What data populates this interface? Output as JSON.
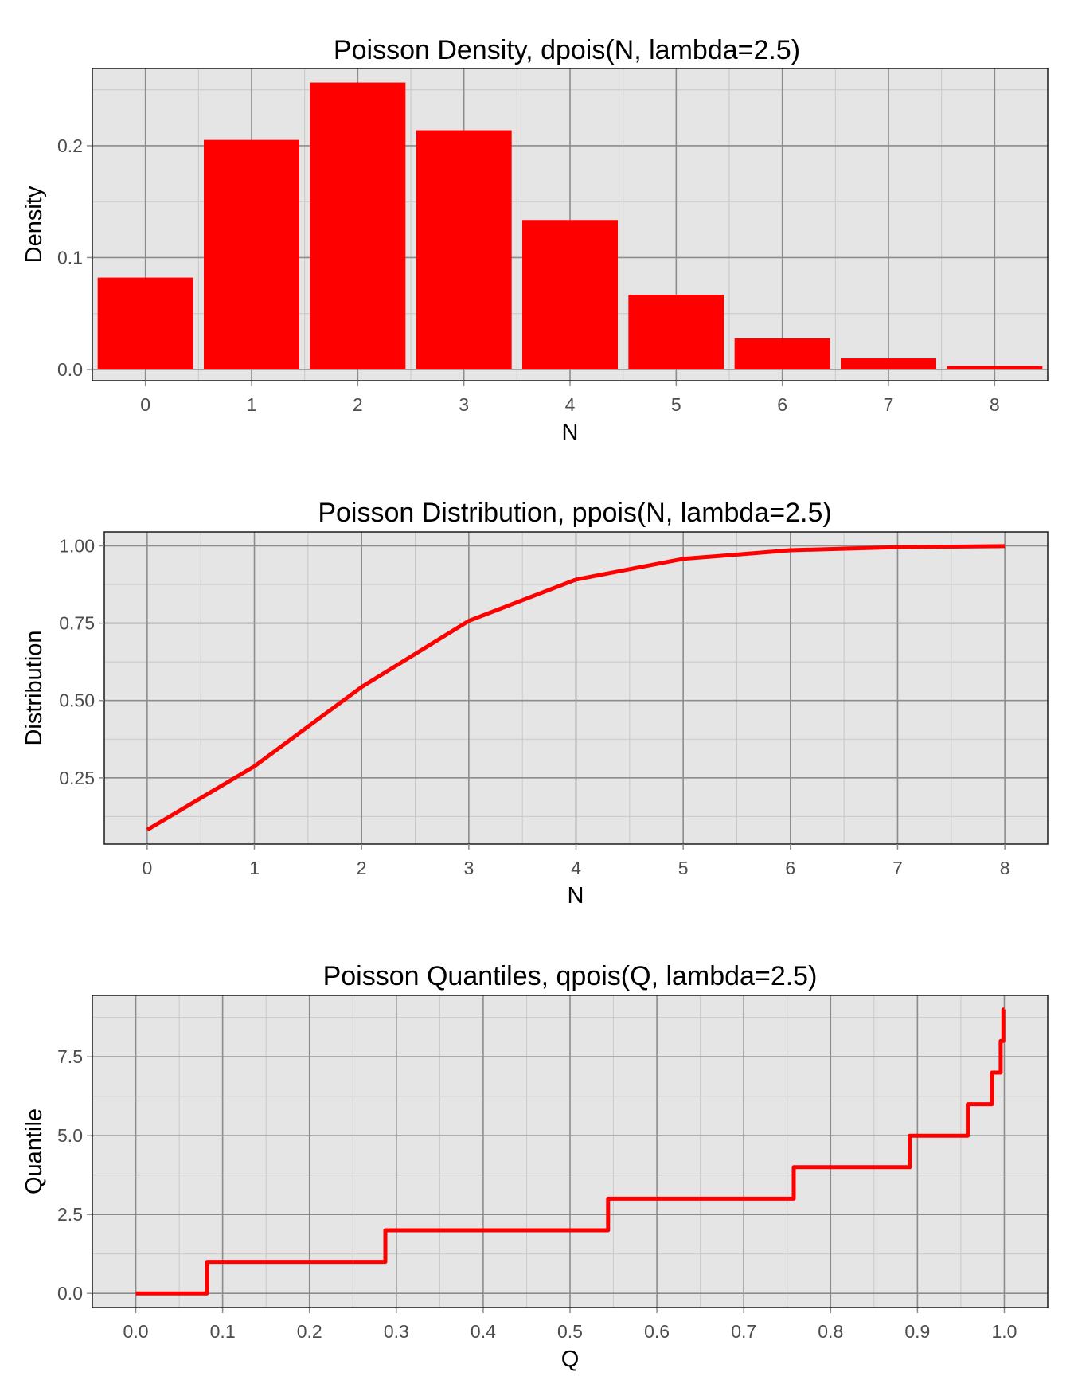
{
  "style": {
    "panel_background": "#e5e5e5",
    "grid_major": "#8c8c8c",
    "grid_minor": "#c8c8c8",
    "series_color": "#ff0000",
    "tick_color": "#4d4d4d"
  },
  "chart_data": [
    {
      "type": "bar",
      "title": "Poisson Density, dpois(N, lambda=2.5)",
      "xlabel": "N",
      "ylabel": "Density",
      "categories": [
        "0",
        "1",
        "2",
        "3",
        "4",
        "5",
        "6",
        "7",
        "8"
      ],
      "values": [
        0.0821,
        0.2052,
        0.2565,
        0.2138,
        0.1336,
        0.0668,
        0.0278,
        0.0099,
        0.0031
      ],
      "xlim": [
        -0.5,
        8.5
      ],
      "ylim": [
        -0.01,
        0.269
      ],
      "xticks": [
        0,
        1,
        2,
        3,
        4,
        5,
        6,
        7,
        8
      ],
      "xtick_labels": [
        "0",
        "1",
        "2",
        "3",
        "4",
        "5",
        "6",
        "7",
        "8"
      ],
      "yticks": [
        0.0,
        0.1,
        0.2
      ],
      "ytick_labels": [
        "0.0",
        "0.1",
        "0.2"
      ],
      "grid": true,
      "legend": "none"
    },
    {
      "type": "line",
      "title": "Poisson Distribution, ppois(N, lambda=2.5)",
      "xlabel": "N",
      "ylabel": "Distribution",
      "x": [
        0,
        1,
        2,
        3,
        4,
        5,
        6,
        7,
        8
      ],
      "y": [
        0.0821,
        0.2873,
        0.5438,
        0.7576,
        0.8912,
        0.958,
        0.9858,
        0.9958,
        0.9989
      ],
      "xlim": [
        -0.4,
        8.4
      ],
      "ylim": [
        0.036,
        1.045
      ],
      "xticks": [
        0,
        1,
        2,
        3,
        4,
        5,
        6,
        7,
        8
      ],
      "xtick_labels": [
        "0",
        "1",
        "2",
        "3",
        "4",
        "5",
        "6",
        "7",
        "8"
      ],
      "yticks": [
        0.25,
        0.5,
        0.75,
        1.0
      ],
      "ytick_labels": [
        "0.25",
        "0.50",
        "0.75",
        "1.00"
      ],
      "grid": true,
      "legend": "none"
    },
    {
      "type": "line",
      "title": "Poisson Quantiles, qpois(Q, lambda=2.5)",
      "xlabel": "Q",
      "ylabel": "Quantile",
      "x": [
        0.0,
        0.0821,
        0.0821,
        0.2873,
        0.2873,
        0.5438,
        0.5438,
        0.7576,
        0.7576,
        0.8912,
        0.8912,
        0.958,
        0.958,
        0.9858,
        0.9858,
        0.9958,
        0.9958,
        0.9989,
        0.9989,
        1.0
      ],
      "y": [
        0,
        0,
        1,
        1,
        2,
        2,
        3,
        3,
        4,
        4,
        5,
        5,
        6,
        6,
        7,
        7,
        8,
        8,
        9,
        9
      ],
      "xlim": [
        -0.05,
        1.05
      ],
      "ylim": [
        -0.45,
        9.45
      ],
      "xticks": [
        0.0,
        0.1,
        0.2,
        0.3,
        0.4,
        0.5,
        0.6,
        0.7,
        0.8,
        0.9,
        1.0
      ],
      "xtick_labels": [
        "0.0",
        "0.1",
        "0.2",
        "0.3",
        "0.4",
        "0.5",
        "0.6",
        "0.7",
        "0.8",
        "0.9",
        "1.0"
      ],
      "yticks": [
        0.0,
        2.5,
        5.0,
        7.5
      ],
      "ytick_labels": [
        "0.0",
        "2.5",
        "5.0",
        "7.5"
      ],
      "grid": true,
      "legend": "none"
    }
  ]
}
